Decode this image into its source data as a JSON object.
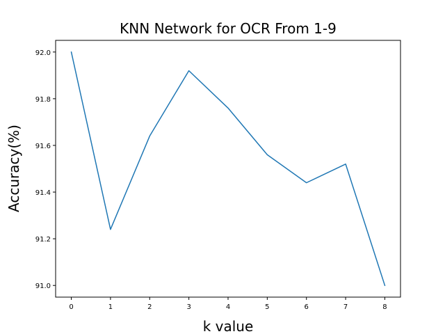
{
  "chart_data": {
    "type": "line",
    "title": "KNN Network for OCR From 1-9",
    "xlabel": "k value",
    "ylabel": "Accuracy(%)",
    "x": [
      0,
      1,
      2,
      3,
      4,
      5,
      6,
      7,
      8
    ],
    "series": [
      {
        "values": [
          92.0,
          91.24,
          91.64,
          91.92,
          91.76,
          91.56,
          91.44,
          91.52,
          91.0
        ],
        "color": "#1f77b4"
      }
    ],
    "xticks": [
      0,
      1,
      2,
      3,
      4,
      5,
      6,
      7,
      8
    ],
    "xtick_labels": [
      "0",
      "1",
      "2",
      "3",
      "4",
      "5",
      "6",
      "7",
      "8"
    ],
    "yticks": [
      91.0,
      91.2,
      91.4,
      91.6,
      91.8,
      92.0
    ],
    "ytick_labels": [
      "91.0",
      "91.2",
      "91.4",
      "91.6",
      "91.8",
      "92.0"
    ],
    "xlim": [
      -0.4,
      8.4
    ],
    "ylim": [
      90.95,
      92.05
    ],
    "grid": false,
    "legend": "none"
  }
}
